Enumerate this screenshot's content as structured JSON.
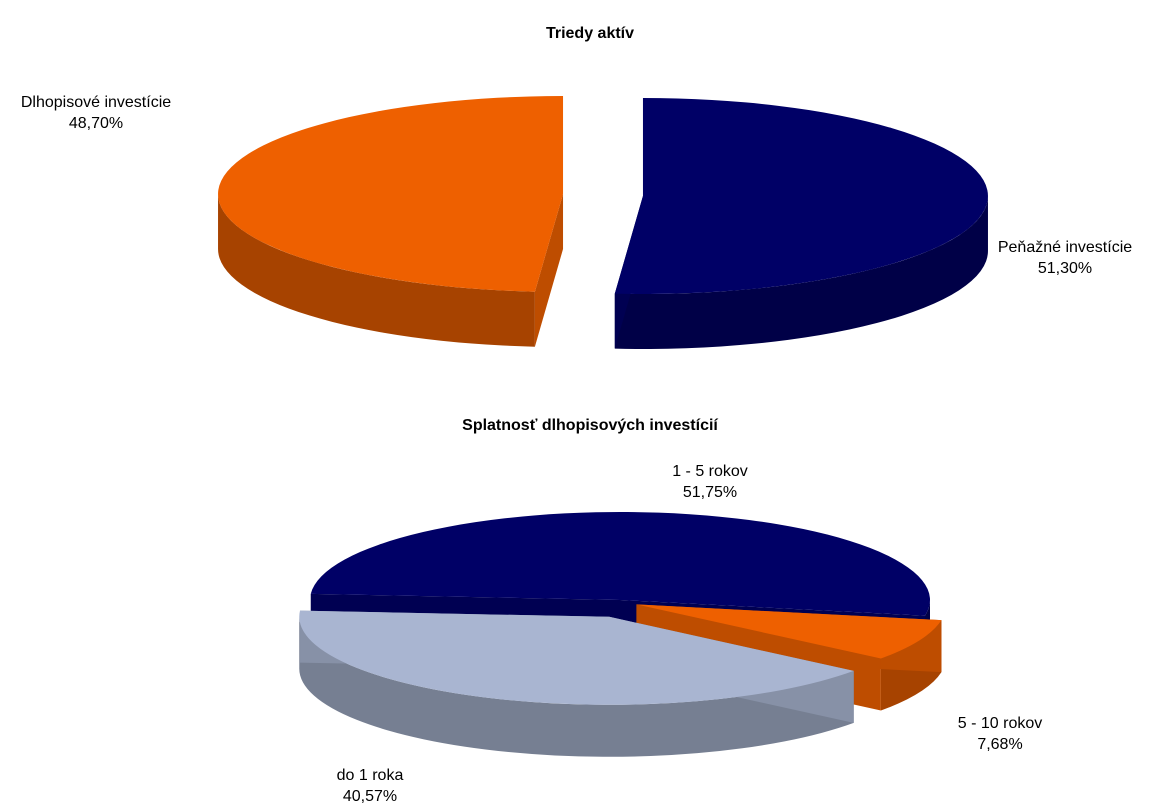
{
  "chart_data": [
    {
      "type": "pie",
      "title": "Triedy aktív",
      "categories": [
        "Peňažné investície",
        "Dlhopisové investície"
      ],
      "values": [
        51.3,
        48.7
      ],
      "value_labels": [
        "51,30%",
        "48,70%"
      ],
      "colors": [
        "#000066",
        "#ee6000"
      ]
    },
    {
      "type": "pie",
      "title": "Splatnosť dlhopisových investícií",
      "categories": [
        "1 - 5 rokov",
        "5 - 10 rokov",
        "do 1 roka"
      ],
      "values": [
        51.75,
        7.68,
        40.57
      ],
      "value_labels": [
        "51,75%",
        "7,68%",
        "40,57%"
      ],
      "colors": [
        "#000066",
        "#ee6000",
        "#a9b5d1"
      ]
    }
  ]
}
